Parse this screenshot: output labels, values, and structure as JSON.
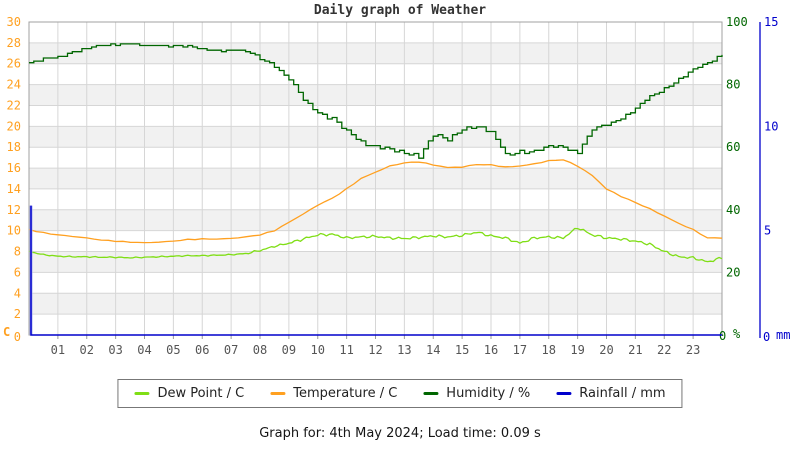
{
  "title": "Daily graph of Weather",
  "footer": {
    "text": "Graph for: 4th May 2024; Load time: 0.09 s"
  },
  "legend": {
    "items": [
      {
        "label": "Dew Point / C",
        "color": "#7FDE15"
      },
      {
        "label": "Temperature / C",
        "color": "#FFA020"
      },
      {
        "label": "Humidity / %",
        "color": "#006600"
      },
      {
        "label": "Rainfall / mm",
        "color": "#0000CC"
      }
    ]
  },
  "chart_data": {
    "type": "line",
    "title": "Daily graph of Weather",
    "x_range": [
      0,
      24
    ],
    "x_step_hours": 0.5,
    "grid": true,
    "legend_position": "bottom",
    "colors": {
      "dew": "#7FDE15",
      "temp": "#FFA020",
      "humidity": "#006600",
      "rain": "#0000CC",
      "grid": "#D6D6D6",
      "band": "#F1F1F1",
      "border": "#A0A0A0",
      "tick": "#999999",
      "x_label": "#555555",
      "title": "#333333"
    },
    "axes": {
      "x": {
        "labels": [
          "01",
          "02",
          "03",
          "04",
          "05",
          "06",
          "07",
          "08",
          "09",
          "10",
          "11",
          "12",
          "13",
          "14",
          "15",
          "16",
          "17",
          "18",
          "19",
          "20",
          "21",
          "22",
          "23"
        ]
      },
      "celsius": {
        "range": [
          0,
          30
        ],
        "unit": "C",
        "ticks": [
          "30",
          "28",
          "26",
          "24",
          "22",
          "20",
          "18",
          "16",
          "14",
          "12",
          "10",
          "8",
          "6",
          "4",
          "2",
          "0"
        ]
      },
      "percent": {
        "range": [
          0,
          100
        ],
        "unit": "%",
        "ticks": [
          "100",
          "80",
          "60",
          "40",
          "20",
          "0"
        ]
      },
      "mm": {
        "range": [
          0,
          15
        ],
        "unit": "mm",
        "ticks": [
          "15",
          "10",
          "5",
          "0"
        ]
      }
    },
    "series": [
      {
        "name": "Dew Point / C",
        "axis": "celsius",
        "style": "noisy",
        "color": "#7FDE15",
        "values": [
          8.0,
          7.7,
          7.55,
          7.5,
          7.5,
          7.45,
          7.45,
          7.4,
          7.45,
          7.5,
          7.55,
          7.6,
          7.6,
          7.65,
          7.7,
          7.8,
          8.1,
          8.5,
          8.8,
          9.2,
          9.6,
          9.65,
          9.3,
          9.4,
          9.45,
          9.3,
          9.25,
          9.35,
          9.5,
          9.4,
          9.55,
          9.85,
          9.5,
          9.3,
          8.8,
          9.3,
          9.4,
          9.3,
          10.3,
          9.6,
          9.3,
          9.2,
          9.0,
          8.7,
          8.0,
          7.5,
          7.4,
          7.0,
          7.4
        ]
      },
      {
        "name": "Temperature / C",
        "axis": "celsius",
        "style": "smooth",
        "color": "#FFA020",
        "values": [
          10.1,
          9.8,
          9.6,
          9.45,
          9.3,
          9.1,
          9.0,
          8.9,
          8.85,
          8.9,
          9.0,
          9.15,
          9.2,
          9.2,
          9.25,
          9.4,
          9.6,
          10.0,
          10.8,
          11.6,
          12.45,
          13.1,
          14.0,
          15.0,
          15.6,
          16.2,
          16.5,
          16.6,
          16.3,
          16.05,
          16.1,
          16.35,
          16.3,
          16.1,
          16.2,
          16.4,
          16.7,
          16.8,
          16.2,
          15.3,
          14.0,
          13.3,
          12.7,
          12.1,
          11.4,
          10.7,
          10.1,
          9.3,
          9.3
        ]
      },
      {
        "name": "Humidity / %",
        "axis": "percent",
        "style": "step",
        "color": "#006600",
        "values": [
          87,
          88,
          89,
          90.5,
          91.5,
          92.5,
          93,
          93,
          92.5,
          92.5,
          92.5,
          92,
          91.5,
          91,
          91,
          90.5,
          88.5,
          86,
          81.5,
          75,
          71.5,
          69,
          64.5,
          62,
          60.5,
          59,
          58,
          57.5,
          64,
          62,
          66,
          67,
          64.5,
          57.5,
          59,
          58.5,
          60,
          60.5,
          58.5,
          65.5,
          67,
          69.5,
          72.5,
          76,
          79,
          82,
          84.5,
          87,
          90
        ]
      },
      {
        "name": "Rainfall / mm",
        "axis": "mm",
        "style": "spike",
        "color": "#0000CC",
        "values": [
          6.2,
          0,
          0,
          0,
          0,
          0,
          0,
          0,
          0,
          0,
          0,
          0,
          0,
          0,
          0,
          0,
          0,
          0,
          0,
          0,
          0,
          0,
          0,
          0,
          0,
          0,
          0,
          0,
          0,
          0,
          0,
          0,
          0,
          0,
          0,
          0,
          0,
          0,
          0,
          0,
          0,
          0,
          0,
          0,
          0,
          0,
          0,
          0,
          0
        ]
      }
    ]
  }
}
